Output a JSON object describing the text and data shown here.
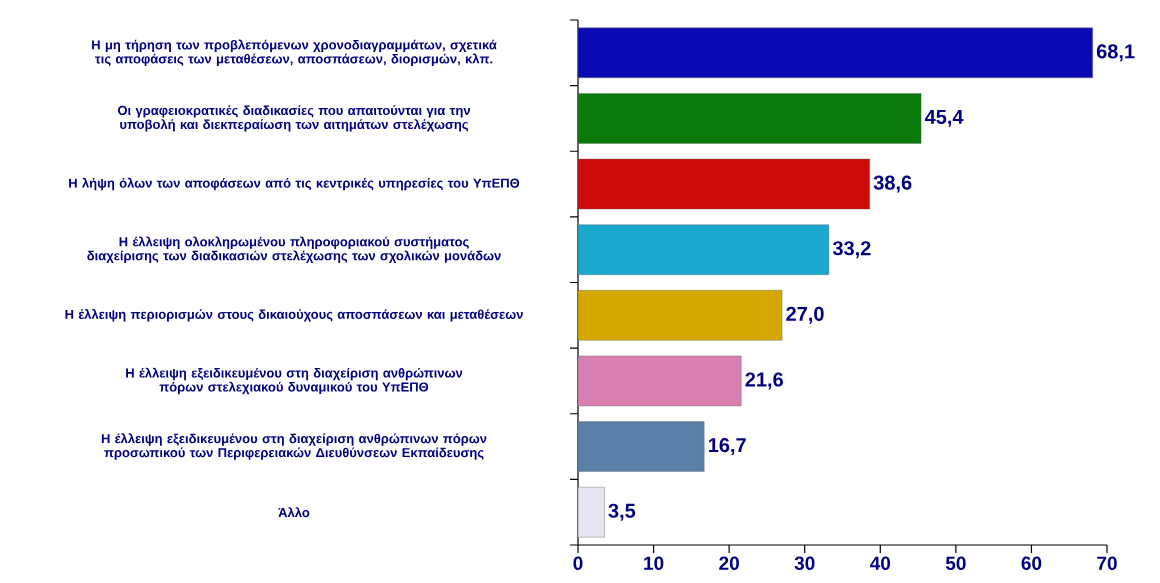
{
  "chart_data": {
    "type": "bar",
    "orientation": "horizontal",
    "categories": [
      "Η μη τήρηση των προβλεπόμενων χρονοδιαγραμμάτων, σχετικά τις αποφάσεις των μεταθέσεων, αποσπάσεων, διορισμών, κλπ.",
      "Οι γραφειοκρατικές διαδικασίες που απαιτούνται για την υποβολή και διεκπεραίωση των αιτημάτων στελέχωσης",
      "Η λήψη όλων των αποφάσεων από τις κεντρικές υπηρεσίες του ΥπΕΠΘ",
      "Η έλλειψη ολοκληρωμένου πληροφοριακού συστήματος διαχείρισης των διαδικασιών στελέχωσης των σχολικών μονάδων",
      "Η έλλειψη περιορισμών στους δικαιούχους αποσπάσεων και μεταθέσεων",
      "Η έλλειψη εξειδικευμένου στη διαχείριση ανθρώπινων πόρων στελεχιακού δυναμικού του ΥπΕΠΘ",
      "Η έλλειψη εξειδικευμένου στη διαχείριση ανθρώπινων πόρων προσωπικού των Περιφερειακών Διευθύνσεων Εκπαίδευσης",
      "Άλλο"
    ],
    "values": [
      68.1,
      45.4,
      38.6,
      33.2,
      27.0,
      21.6,
      16.7,
      3.5
    ],
    "value_labels": [
      "68,1",
      "45,4",
      "38,6",
      "33,2",
      "27,0",
      "21,6",
      "16,7",
      "3,5"
    ],
    "colors": [
      "#0a0ab4",
      "#0a7a0a",
      "#cc0a0a",
      "#1aa8cc",
      "#d4a800",
      "#d77fb0",
      "#5a7fa8",
      "#e6e6f5"
    ],
    "xlim": [
      0,
      70
    ],
    "xticks": [
      0,
      10,
      20,
      30,
      40,
      50,
      60,
      70
    ]
  }
}
